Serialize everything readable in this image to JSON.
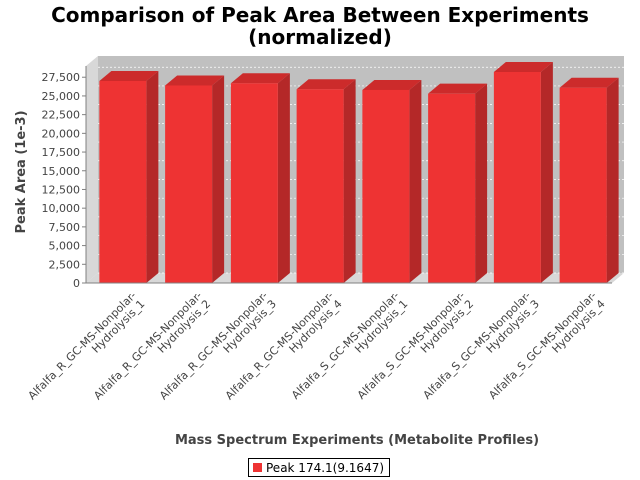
{
  "title_line1": "Comparison of Peak Area Between Experiments",
  "title_line2": "(normalized)",
  "chart_data": {
    "type": "bar",
    "title": "Comparison of Peak Area Between Experiments (normalized)",
    "xlabel": "Mass Spectrum Experiments (Metabolite Profiles)",
    "ylabel": "Peak Area (1e-3)",
    "categories": [
      "Alfalfa_R_GC-MS-Nonpolar-Hydrolysis_1",
      "Alfalfa_R_GC-MS-Nonpolar-Hydrolysis_2",
      "Alfalfa_R_GC-MS-Nonpolar-Hydrolysis_3",
      "Alfalfa_R_GC-MS-Nonpolar-Hydrolysis_4",
      "Alfalfa_S_GC-MS-Nonpolar-Hydrolysis_1",
      "Alfalfa_S_GC-MS-Nonpolar-Hydrolysis_2",
      "Alfalfa_S_GC-MS-Nonpolar-Hydrolysis_3",
      "Alfalfa_S_GC-MS-Nonpolar-Hydrolysis_4"
    ],
    "category_lines": [
      [
        "Alfalfa_R_GC-MS-Nonpolar-",
        "Hydrolysis_1"
      ],
      [
        "Alfalfa_R_GC-MS-Nonpolar-",
        "Hydrolysis_2"
      ],
      [
        "Alfalfa_R_GC-MS-Nonpolar-",
        "Hydrolysis_3"
      ],
      [
        "Alfalfa_R_GC-MS-Nonpolar-",
        "Hydrolysis_4"
      ],
      [
        "Alfalfa_S_GC-MS-Nonpolar-",
        "Hydrolysis_1"
      ],
      [
        "Alfalfa_S_GC-MS-Nonpolar-",
        "Hydrolysis_2"
      ],
      [
        "Alfalfa_S_GC-MS-Nonpolar-",
        "Hydrolysis_3"
      ],
      [
        "Alfalfa_S_GC-MS-Nonpolar-",
        "Hydrolysis_4"
      ]
    ],
    "series": [
      {
        "name": "Peak 174.1(9.1647)",
        "values": [
          27000,
          26400,
          26700,
          25900,
          25800,
          25300,
          28200,
          26100
        ]
      }
    ],
    "ylim": [
      0,
      29000
    ],
    "yticks": [
      0,
      2500,
      5000,
      7500,
      10000,
      12500,
      15000,
      17500,
      20000,
      22500,
      25000,
      27500
    ],
    "ytick_labels": [
      "0",
      "2,500",
      "5,000",
      "7,500",
      "10,000",
      "12,500",
      "15,000",
      "17,500",
      "20,000",
      "22,500",
      "25,000",
      "27,500"
    ],
    "grid": true,
    "legend_position": "bottom-center",
    "colors": {
      "bar_front": "#ee3333",
      "bar_side": "#b42828",
      "bar_top": "#cc2b2b",
      "plot_back": "#c0c0c0",
      "plot_floor": "#d8d8d8",
      "axis": "#808080",
      "text": "#444444"
    }
  }
}
